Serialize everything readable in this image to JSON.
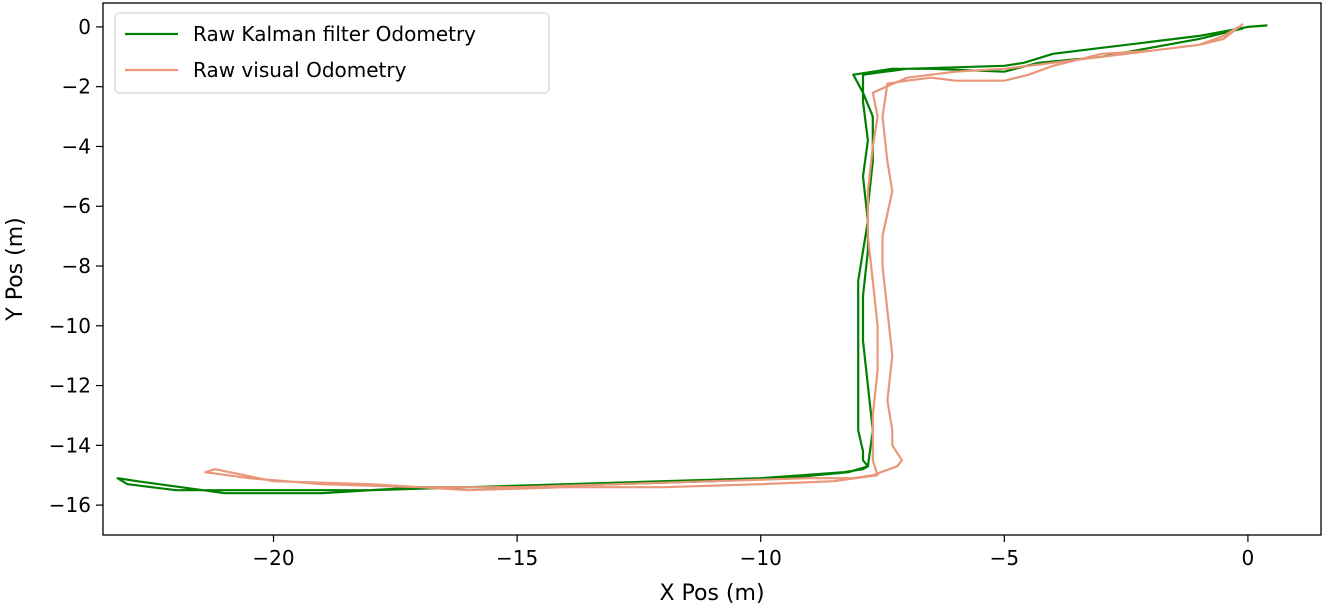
{
  "chart_data": {
    "type": "line",
    "title": "",
    "xlabel": "X Pos (m)",
    "ylabel": "Y Pos (m)",
    "xlim": [
      -23.5,
      1.5
    ],
    "ylim": [
      -17.0,
      0.8
    ],
    "xticks": [
      -20,
      -15,
      -10,
      -5,
      0
    ],
    "yticks": [
      0,
      -2,
      -4,
      -6,
      -8,
      -10,
      -12,
      -14,
      -16
    ],
    "xtick_labels": [
      "−20",
      "−15",
      "−10",
      "−5",
      "0"
    ],
    "ytick_labels": [
      "0",
      "−2",
      "−4",
      "−6",
      "−8",
      "−10",
      "−12",
      "−14",
      "−16"
    ],
    "grid": false,
    "legend": {
      "placement": "top-left"
    },
    "series": [
      {
        "name": "Raw Kalman filter Odometry",
        "color": "#008000",
        "x": [
          0.4,
          0.0,
          -1.0,
          -2.0,
          -3.0,
          -4.0,
          -4.6,
          -5.0,
          -6.0,
          -7.0,
          -7.9,
          -7.9,
          -7.8,
          -7.9,
          -7.8,
          -7.9,
          -8.0,
          -8.0,
          -8.0,
          -8.0,
          -7.9,
          -7.9,
          -7.8,
          -7.9,
          -8.3,
          -10.0,
          -12.0,
          -14.0,
          -16.0,
          -18.0,
          -20.0,
          -22.0,
          -23.0,
          -23.2,
          -22.8,
          -21.0,
          -19.0,
          -17.0,
          -15.0,
          -13.0,
          -11.0,
          -9.5,
          -8.2,
          -7.8,
          -7.7,
          -7.8,
          -7.9,
          -7.9,
          -7.8,
          -7.8,
          -7.7,
          -7.7,
          -7.9,
          -8.1,
          -7.3,
          -6.5,
          -5.0,
          -4.3,
          -3.0,
          -2.0,
          -1.0,
          -0.1
        ],
        "y": [
          0.05,
          0.0,
          -0.3,
          -0.5,
          -0.7,
          -0.9,
          -1.2,
          -1.3,
          -1.35,
          -1.4,
          -1.6,
          -2.5,
          -3.8,
          -5.0,
          -6.5,
          -7.5,
          -8.5,
          -10.5,
          -12.0,
          -13.5,
          -14.2,
          -14.5,
          -14.7,
          -14.8,
          -14.9,
          -15.1,
          -15.2,
          -15.3,
          -15.4,
          -15.5,
          -15.5,
          -15.5,
          -15.3,
          -15.1,
          -15.2,
          -15.6,
          -15.6,
          -15.4,
          -15.4,
          -15.3,
          -15.2,
          -15.1,
          -14.9,
          -14.7,
          -13.5,
          -12.0,
          -10.5,
          -9.0,
          -7.5,
          -6.0,
          -4.5,
          -3.0,
          -2.2,
          -1.6,
          -1.4,
          -1.4,
          -1.5,
          -1.2,
          -1.0,
          -0.7,
          -0.4,
          -0.05
        ]
      },
      {
        "name": "Raw visual Odometry",
        "color": "#E9967A",
        "x": [
          -0.1,
          -0.5,
          -1.0,
          -2.0,
          -3.0,
          -4.0,
          -4.5,
          -5.0,
          -6.0,
          -6.5,
          -7.0,
          -7.4,
          -7.5,
          -7.4,
          -7.3,
          -7.5,
          -7.5,
          -7.4,
          -7.3,
          -7.4,
          -7.3,
          -7.3,
          -7.1,
          -7.2,
          -7.7,
          -8.1,
          -9.0,
          -11.0,
          -13.0,
          -15.0,
          -17.0,
          -19.0,
          -20.5,
          -21.4,
          -21.2,
          -20.0,
          -18.0,
          -16.0,
          -14.0,
          -12.0,
          -10.0,
          -8.5,
          -7.6,
          -7.7,
          -7.7,
          -7.6,
          -7.6,
          -7.7,
          -7.8,
          -7.8,
          -7.7,
          -7.6,
          -7.7,
          -7.0,
          -6.0,
          -5.0,
          -4.0,
          -3.0,
          -2.0,
          -1.0,
          -0.5,
          -0.2
        ],
        "y": [
          0.1,
          -0.4,
          -0.6,
          -0.8,
          -0.9,
          -1.3,
          -1.6,
          -1.8,
          -1.8,
          -1.7,
          -1.8,
          -1.9,
          -3.0,
          -4.5,
          -5.5,
          -7.0,
          -8.0,
          -9.5,
          -11.0,
          -12.5,
          -13.5,
          -14.0,
          -14.5,
          -14.7,
          -15.0,
          -15.1,
          -15.1,
          -15.2,
          -15.3,
          -15.4,
          -15.4,
          -15.3,
          -15.1,
          -14.9,
          -14.8,
          -15.2,
          -15.3,
          -15.5,
          -15.4,
          -15.4,
          -15.3,
          -15.2,
          -15.0,
          -14.5,
          -13.0,
          -11.5,
          -10.0,
          -8.5,
          -7.0,
          -5.5,
          -4.0,
          -3.0,
          -2.2,
          -1.7,
          -1.5,
          -1.4,
          -1.2,
          -1.0,
          -0.8,
          -0.6,
          -0.3,
          0.0
        ]
      }
    ]
  }
}
